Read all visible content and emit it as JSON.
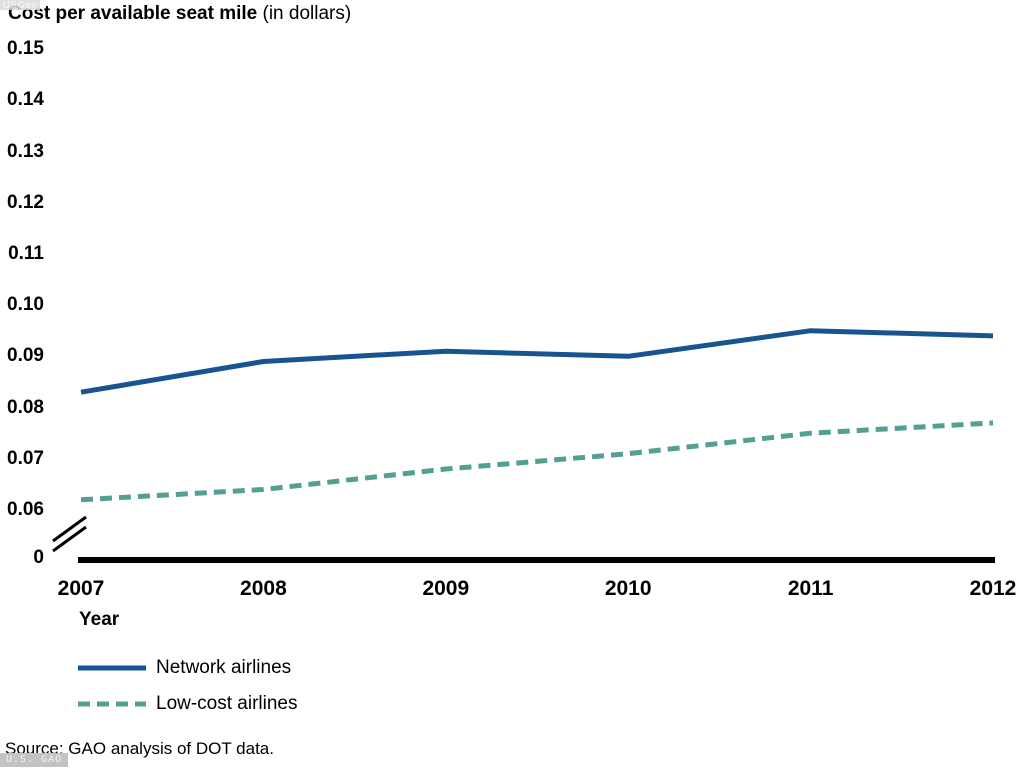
{
  "title": {
    "main": "Cost per available seat mile",
    "suffix": " (in dollars)"
  },
  "axis": {
    "x_label": "Year",
    "zero_label": "0"
  },
  "legend": [
    {
      "name": "Network airlines"
    },
    {
      "name": "Low-cost airlines"
    }
  ],
  "source_note": "Source: GAO analysis of DOT data.",
  "watermarks": {
    "top_left": "USGov",
    "bottom_left": "U.S. GAO"
  },
  "colors": {
    "network": "#1a5490",
    "low_cost": "#52a092",
    "axis": "#000000"
  },
  "chart_data": {
    "type": "line",
    "title": "Cost per available seat mile (in dollars)",
    "xlabel": "Year",
    "ylabel": "Cost per available seat mile (dollars)",
    "categories": [
      "2007",
      "2008",
      "2009",
      "2010",
      "2011",
      "2012"
    ],
    "yticks": [
      0.15,
      0.14,
      0.13,
      0.12,
      0.11,
      0.1,
      0.09,
      0.08,
      0.07,
      0.06
    ],
    "axis_break": true,
    "ylim": [
      0.06,
      0.15
    ],
    "grid": false,
    "legend_position": "bottom-left",
    "series": [
      {
        "name": "Network airlines",
        "color": "#1a5490",
        "dash": "solid",
        "values": [
          0.083,
          0.089,
          0.091,
          0.09,
          0.095,
          0.094
        ]
      },
      {
        "name": "Low-cost airlines",
        "color": "#52a092",
        "dash": "dashed",
        "values": [
          0.062,
          0.064,
          0.068,
          0.071,
          0.075,
          0.077
        ]
      }
    ],
    "source": "Source: GAO analysis of DOT data."
  }
}
